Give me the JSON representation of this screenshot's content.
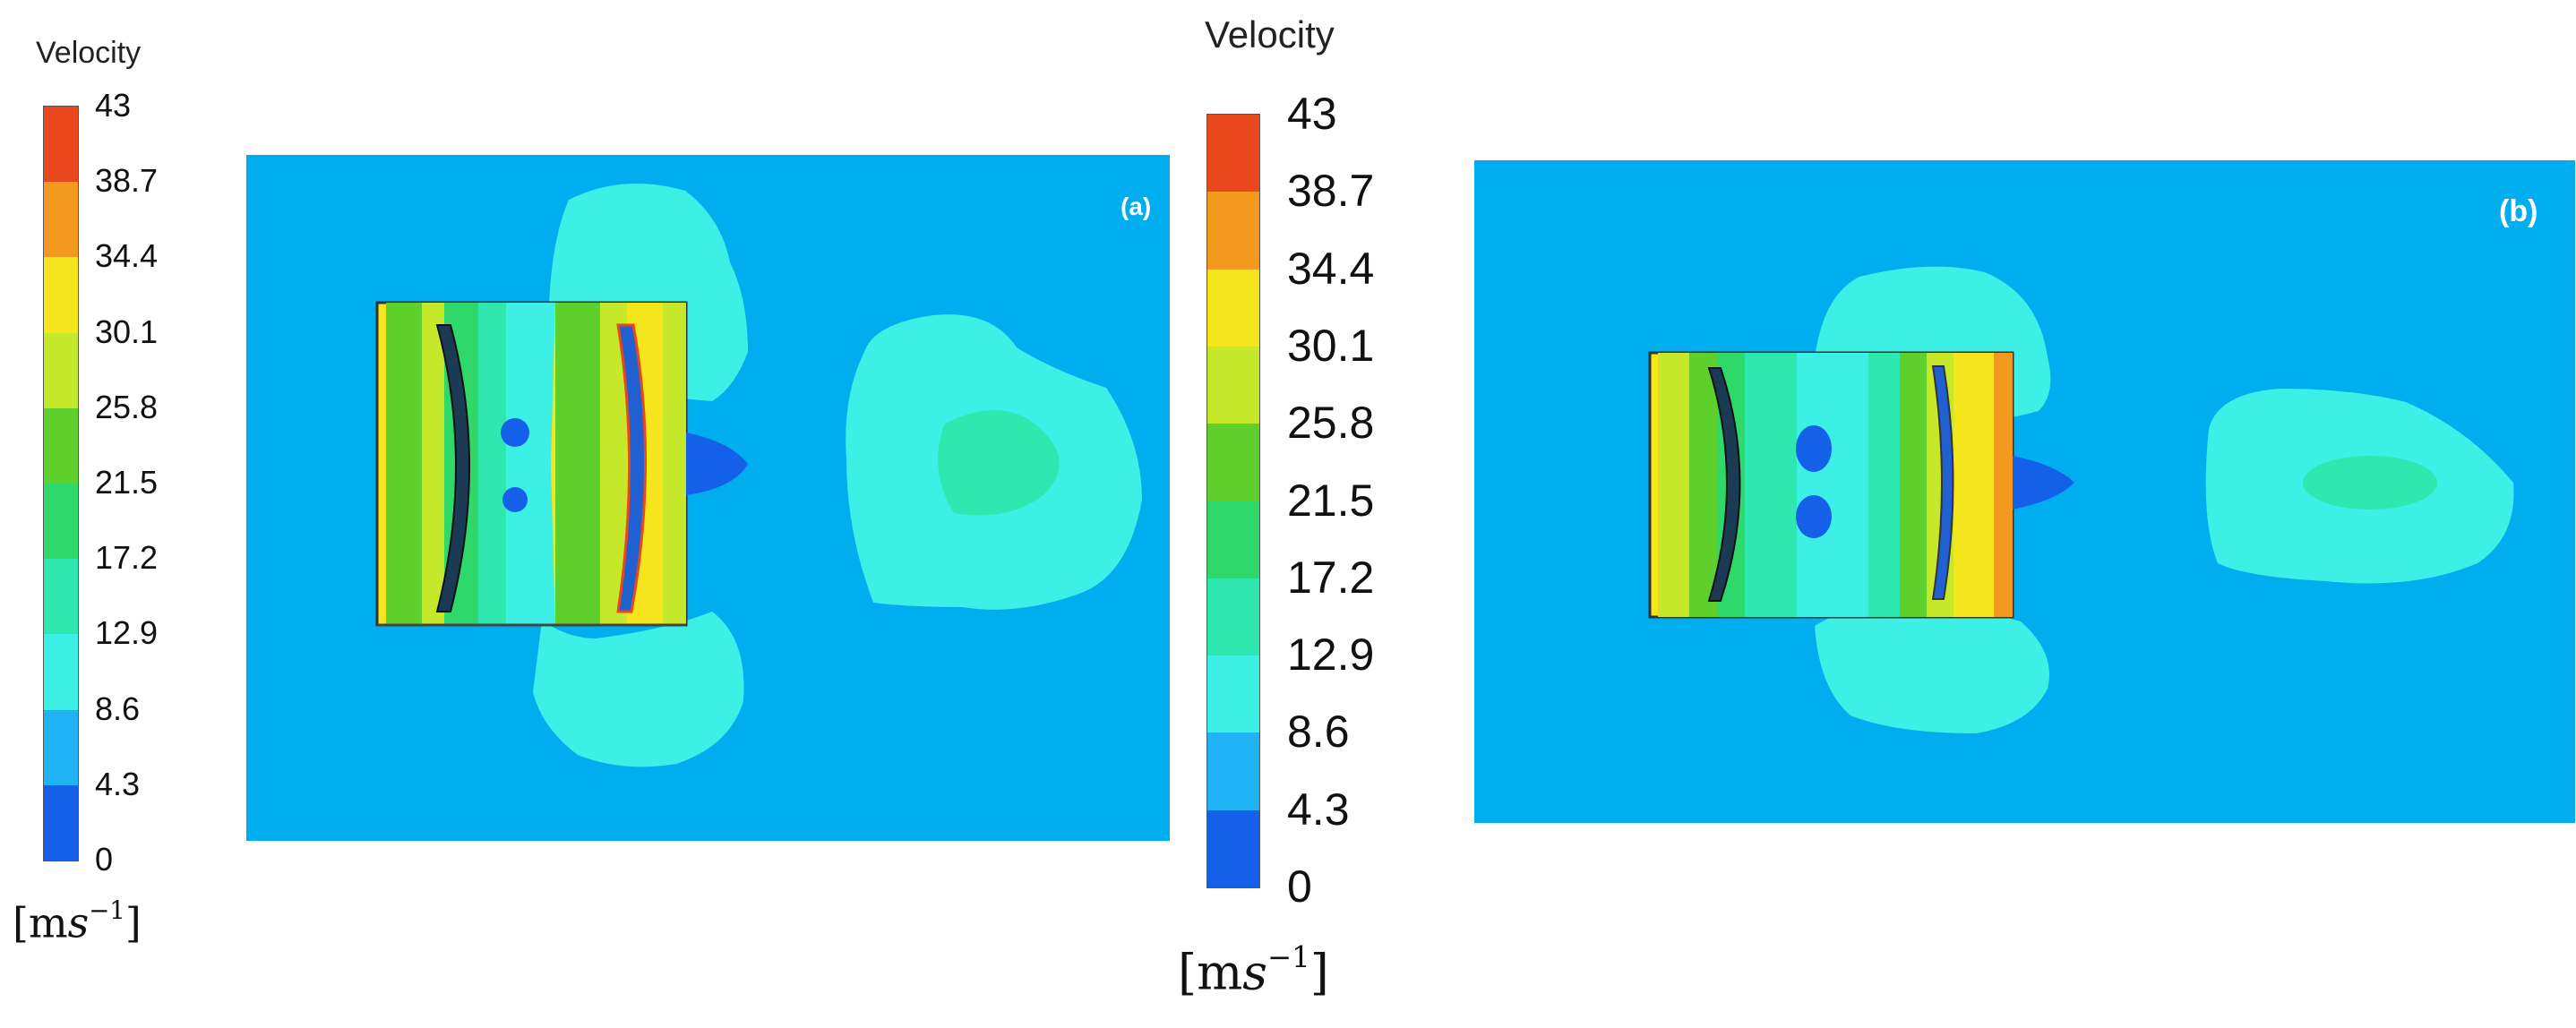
{
  "legend_left": {
    "title": "Velocity",
    "ticks": [
      "43",
      "38.7",
      "34.4",
      "30.1",
      "25.8",
      "21.5",
      "17.2",
      "12.9",
      "8.6",
      "4.3",
      "0"
    ],
    "unit_base": "[m",
    "unit_var": "s",
    "unit_exp": "−1",
    "unit_close": "]"
  },
  "legend_center": {
    "title": "Velocity",
    "ticks": [
      "43",
      "38.7",
      "34.4",
      "30.1",
      "25.8",
      "21.5",
      "17.2",
      "12.9",
      "8.6",
      "4.3",
      "0"
    ],
    "unit_base": "[m",
    "unit_var": "s",
    "unit_exp": "−1",
    "unit_close": "]"
  },
  "colormap": [
    "#e8481c",
    "#f39a1e",
    "#f4e51c",
    "#c6e82a",
    "#5fd02b",
    "#2ed86a",
    "#2ee8b0",
    "#3cf0e6",
    "#20b4f6",
    "#1560e8"
  ],
  "panels": {
    "a": {
      "label": "(a)"
    },
    "b": {
      "label": "(b)"
    }
  }
}
